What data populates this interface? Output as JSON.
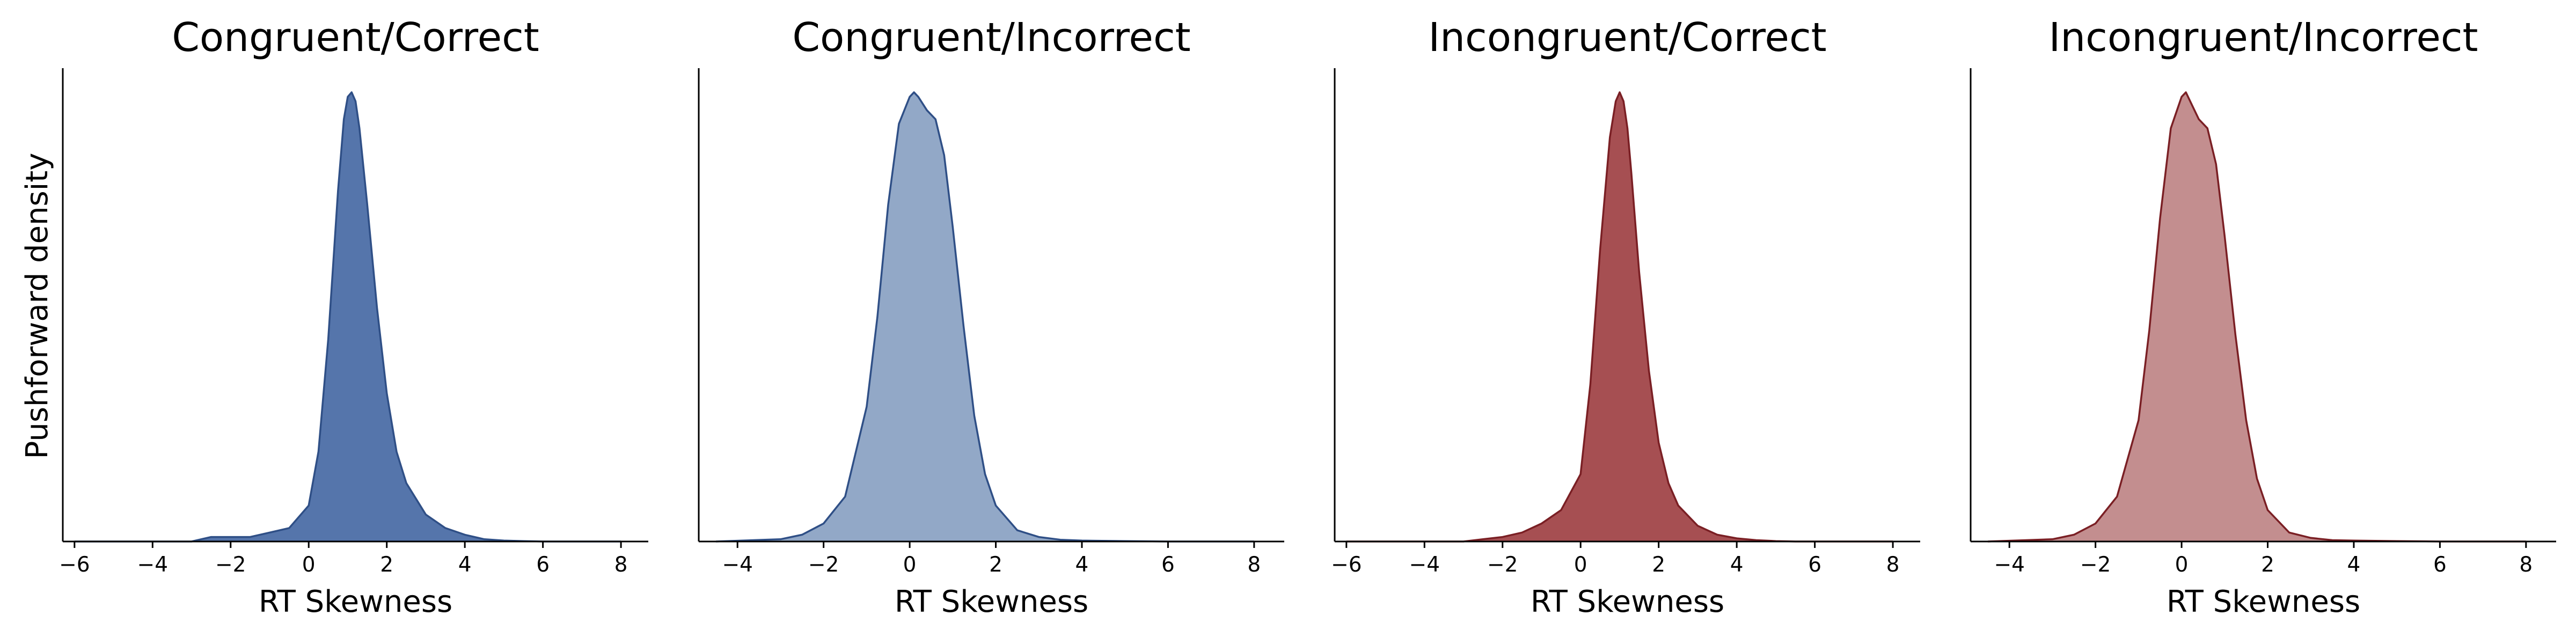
{
  "figure": {
    "ylabel": "Pushforward density"
  },
  "chart_data": [
    {
      "type": "area",
      "title": "Congruent/Correct",
      "xlabel": "RT Skewness",
      "ylabel": "Pushforward density",
      "xlim": [
        -6.3,
        8.7
      ],
      "xticks": [
        -6,
        -4,
        -2,
        0,
        2,
        4,
        6,
        8
      ],
      "y_ticks_visible": false,
      "grid": false,
      "fill_color": "#4C6EA6",
      "line_color": "#2F4F86",
      "fill_opacity": 0.95,
      "x": [
        -6.0,
        -3.0,
        -2.5,
        -2.0,
        -1.5,
        -1.0,
        -0.5,
        0.0,
        0.25,
        0.5,
        0.75,
        0.9,
        1.0,
        1.1,
        1.2,
        1.3,
        1.5,
        1.75,
        2.0,
        2.25,
        2.5,
        3.0,
        3.5,
        4.0,
        4.5,
        5.0,
        5.5,
        6.0,
        8.0
      ],
      "y": [
        0.0,
        0.0,
        0.01,
        0.01,
        0.01,
        0.02,
        0.03,
        0.08,
        0.2,
        0.45,
        0.78,
        0.94,
        0.99,
        1.0,
        0.98,
        0.92,
        0.75,
        0.52,
        0.33,
        0.2,
        0.13,
        0.06,
        0.03,
        0.015,
        0.005,
        0.002,
        0.001,
        0.0,
        0.0
      ]
    },
    {
      "type": "area",
      "title": "Congruent/Incorrect",
      "xlabel": "RT Skewness",
      "xlim": [
        -4.9,
        8.7
      ],
      "xticks": [
        -4,
        -2,
        0,
        2,
        4,
        6,
        8
      ],
      "y_ticks_visible": false,
      "grid": false,
      "fill_color": "#92A8C7",
      "line_color": "#2F4F86",
      "fill_opacity": 1,
      "x": [
        -4.5,
        -3.0,
        -2.5,
        -2.0,
        -1.5,
        -1.0,
        -0.75,
        -0.5,
        -0.25,
        0.0,
        0.1,
        0.2,
        0.4,
        0.6,
        0.8,
        1.0,
        1.25,
        1.5,
        1.75,
        2.0,
        2.5,
        3.0,
        3.5,
        4.0,
        5.0,
        6.0,
        8.0
      ],
      "y": [
        0.0,
        0.005,
        0.015,
        0.04,
        0.1,
        0.3,
        0.5,
        0.75,
        0.93,
        0.99,
        1.0,
        0.99,
        0.96,
        0.94,
        0.86,
        0.7,
        0.48,
        0.28,
        0.15,
        0.08,
        0.025,
        0.01,
        0.004,
        0.002,
        0.001,
        0.0,
        0.0
      ]
    },
    {
      "type": "area",
      "title": "Incongruent/Correct",
      "xlabel": "RT Skewness",
      "xlim": [
        -6.3,
        8.7
      ],
      "xticks": [
        -6,
        -4,
        -2,
        0,
        2,
        4,
        6,
        8
      ],
      "y_ticks_visible": false,
      "grid": false,
      "fill_color": "#A14649",
      "line_color": "#7A1F24",
      "fill_opacity": 0.95,
      "x": [
        -6.0,
        -3.0,
        -2.5,
        -2.0,
        -1.5,
        -1.0,
        -0.5,
        0.0,
        0.25,
        0.5,
        0.75,
        0.9,
        1.0,
        1.1,
        1.2,
        1.3,
        1.5,
        1.75,
        2.0,
        2.25,
        2.5,
        3.0,
        3.5,
        4.0,
        4.5,
        5.0,
        5.5,
        6.0,
        8.0
      ],
      "y": [
        0.0,
        0.0,
        0.005,
        0.01,
        0.02,
        0.04,
        0.07,
        0.15,
        0.35,
        0.65,
        0.9,
        0.98,
        1.0,
        0.98,
        0.92,
        0.82,
        0.6,
        0.38,
        0.22,
        0.13,
        0.08,
        0.035,
        0.015,
        0.007,
        0.003,
        0.001,
        0.0,
        0.0,
        0.0
      ]
    },
    {
      "type": "area",
      "title": "Incongruent/Incorrect",
      "xlabel": "RT Skewness",
      "xlim": [
        -4.9,
        8.7
      ],
      "xticks": [
        -4,
        -2,
        0,
        2,
        4,
        6,
        8
      ],
      "y_ticks_visible": false,
      "grid": false,
      "fill_color": "#C38E8F",
      "line_color": "#7A1F24",
      "fill_opacity": 1,
      "x": [
        -4.5,
        -3.0,
        -2.5,
        -2.0,
        -1.5,
        -1.0,
        -0.75,
        -0.5,
        -0.25,
        0.0,
        0.1,
        0.2,
        0.4,
        0.6,
        0.8,
        1.0,
        1.25,
        1.5,
        1.75,
        2.0,
        2.5,
        3.0,
        3.5,
        4.0,
        5.0,
        6.0,
        8.0
      ],
      "y": [
        0.0,
        0.005,
        0.015,
        0.04,
        0.1,
        0.27,
        0.47,
        0.72,
        0.92,
        0.99,
        1.0,
        0.98,
        0.94,
        0.92,
        0.84,
        0.68,
        0.46,
        0.27,
        0.14,
        0.07,
        0.02,
        0.008,
        0.003,
        0.002,
        0.001,
        0.0,
        0.0
      ]
    }
  ]
}
